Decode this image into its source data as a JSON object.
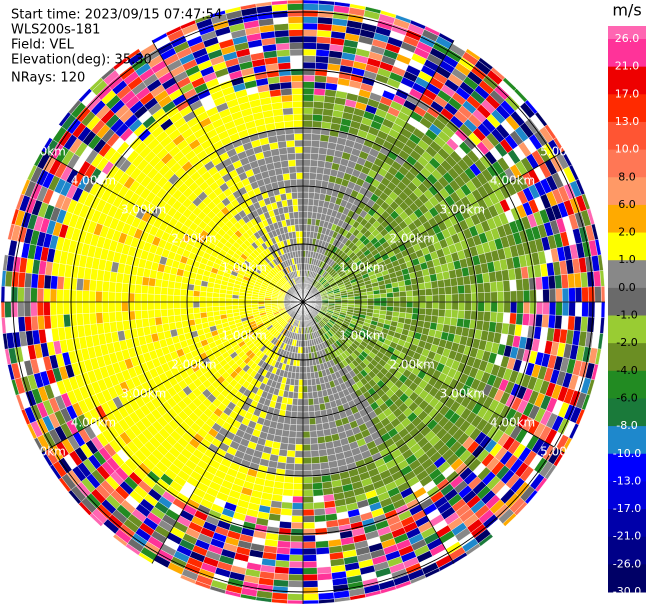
{
  "chart_data": {
    "type": "radar_ppi",
    "info": [
      "Start time: 2023/09/15 07:47:54",
      "WLS200s-181",
      "Field: VEL",
      "Elevation(deg): 35.30",
      "NRays: 120"
    ],
    "range_rings": [
      "1.00km",
      "2.00km",
      "3.00km",
      "4.00km",
      "5.00km"
    ],
    "colorbar": {
      "unit": "m/s",
      "ticks": [
        {
          "value": 26,
          "label": "26.0"
        },
        {
          "value": 21,
          "label": "21.0"
        },
        {
          "value": 17,
          "label": "17.0"
        },
        {
          "value": 13,
          "label": "13.0"
        },
        {
          "value": 10,
          "label": "10.0"
        },
        {
          "value": 8,
          "label": "8.0"
        },
        {
          "value": 6,
          "label": "6.0"
        },
        {
          "value": 2,
          "label": "2.0"
        },
        {
          "value": 1,
          "label": "1.0"
        },
        {
          "value": 0,
          "label": "0.0"
        },
        {
          "value": -1,
          "label": "-1.0"
        },
        {
          "value": -2,
          "label": "-2.0"
        },
        {
          "value": -4,
          "label": "-4.0"
        },
        {
          "value": -6,
          "label": "-6.0"
        },
        {
          "value": -8,
          "label": "-8.0"
        },
        {
          "value": -10,
          "label": "-10.0"
        },
        {
          "value": -13,
          "label": "-13.0"
        },
        {
          "value": -17,
          "label": "-17.0"
        },
        {
          "value": -21,
          "label": "-21.0"
        },
        {
          "value": -26,
          "label": "-26.0"
        },
        {
          "value": -30,
          "label": "-30.0"
        }
      ],
      "colors": [
        "#ff3399",
        "#ee0000",
        "#ff2a00",
        "#ff5533",
        "#ff7755",
        "#ff9966",
        "#ffaa00",
        "#ffff00",
        "#888888",
        "#6a6a6a",
        "#99cc33",
        "#6b8e23",
        "#228b22",
        "#1a7a3a",
        "#1e88cc",
        "#0000ff",
        "#0000dd",
        "#0000aa",
        "#000088",
        "#000066"
      ],
      "over_color": "#ff66b2"
    }
  }
}
